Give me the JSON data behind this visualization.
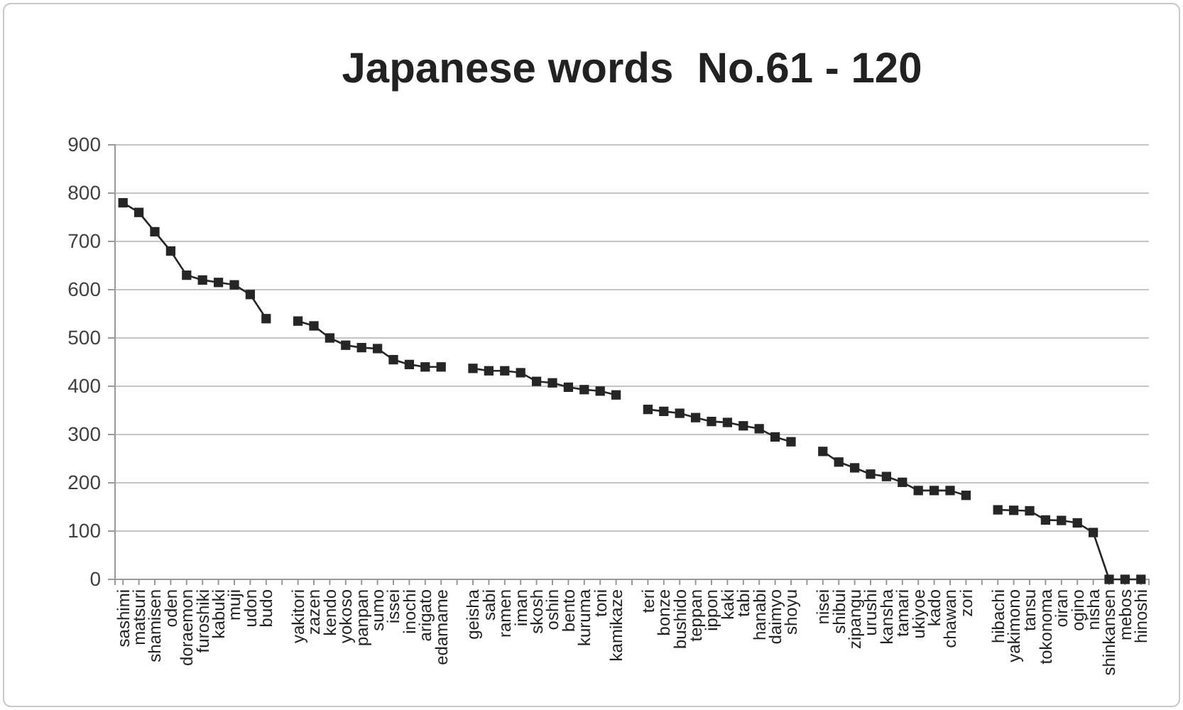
{
  "chart_data": {
    "type": "line",
    "title": "Japanese words  No.61 - 120",
    "categories": [
      "sashimi",
      "matsuri",
      "shamisen",
      "oden",
      "doraemon",
      "furoshiki",
      "kabuki",
      "muji",
      "udon",
      "budo",
      null,
      "yakitori",
      "zazen",
      "kendo",
      "yokoso",
      "panpan",
      "sumo",
      "issei",
      "inochi",
      "arigato",
      "edamame",
      null,
      "geisha",
      "sabi",
      "ramen",
      "iman",
      "skosh",
      "oshin",
      "bento",
      "kuruma",
      "toni",
      "kamikaze",
      null,
      "teri",
      "bonze",
      "bushido",
      "teppan",
      "ippon",
      "kaki",
      "tabi",
      "hanabi",
      "daimyo",
      "shoyu",
      null,
      "nisei",
      "shibui",
      "zipangu",
      "urushi",
      "kansha",
      "tamari",
      "ukiyoe",
      "kado",
      "chawan",
      "zori",
      null,
      "hibachi",
      "yakimono",
      "tansu",
      "tokonoma",
      "oiran",
      "ogino",
      "nisha",
      "shinkansen",
      "mebos",
      "hinoshi"
    ],
    "series": [
      {
        "color": "#262626",
        "values": [
          780,
          760,
          720,
          680,
          630,
          620,
          615,
          610,
          590,
          540,
          null,
          535,
          525,
          500,
          485,
          480,
          478,
          455,
          445,
          440,
          440,
          null,
          437,
          432,
          432,
          428,
          410,
          407,
          398,
          393,
          390,
          382,
          null,
          352,
          348,
          344,
          335,
          327,
          325,
          318,
          312,
          295,
          285,
          null,
          265,
          243,
          231,
          218,
          213,
          201,
          184,
          184,
          184,
          174,
          null,
          144,
          143,
          142,
          123,
          122,
          117,
          97,
          0,
          0,
          0
        ]
      }
    ],
    "ylim": [
      0,
      900
    ],
    "yticks": [
      0,
      100,
      200,
      300,
      400,
      500,
      600,
      700,
      800,
      900
    ],
    "grid": "y",
    "marker": "square",
    "line_style": "solid"
  }
}
